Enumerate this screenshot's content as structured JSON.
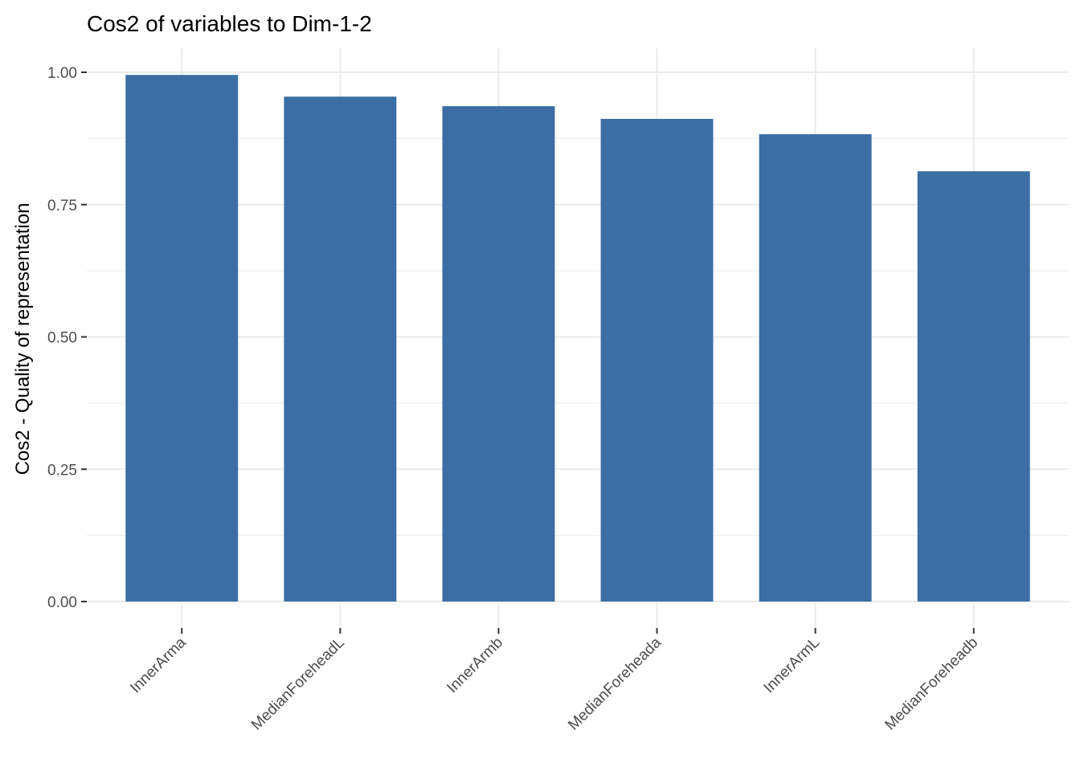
{
  "chart_data": {
    "type": "bar",
    "title": "Cos2 of variables to Dim-1-2",
    "xlabel": "",
    "ylabel": "Cos2 - Quality of representation",
    "categories": [
      "InnerArma",
      "MedianForeheadL",
      "InnerArmb",
      "MedianForeheada",
      "InnerArmL",
      "MedianForeheadb"
    ],
    "values": [
      0.995,
      0.954,
      0.936,
      0.912,
      0.883,
      0.813
    ],
    "ylim": [
      0,
      1.05
    ],
    "yticks": [
      "0.00",
      "0.25",
      "0.50",
      "0.75",
      "1.00"
    ],
    "grid": true,
    "bar_color": "#3A6EA5",
    "grid_color": "#EBEBEB"
  }
}
